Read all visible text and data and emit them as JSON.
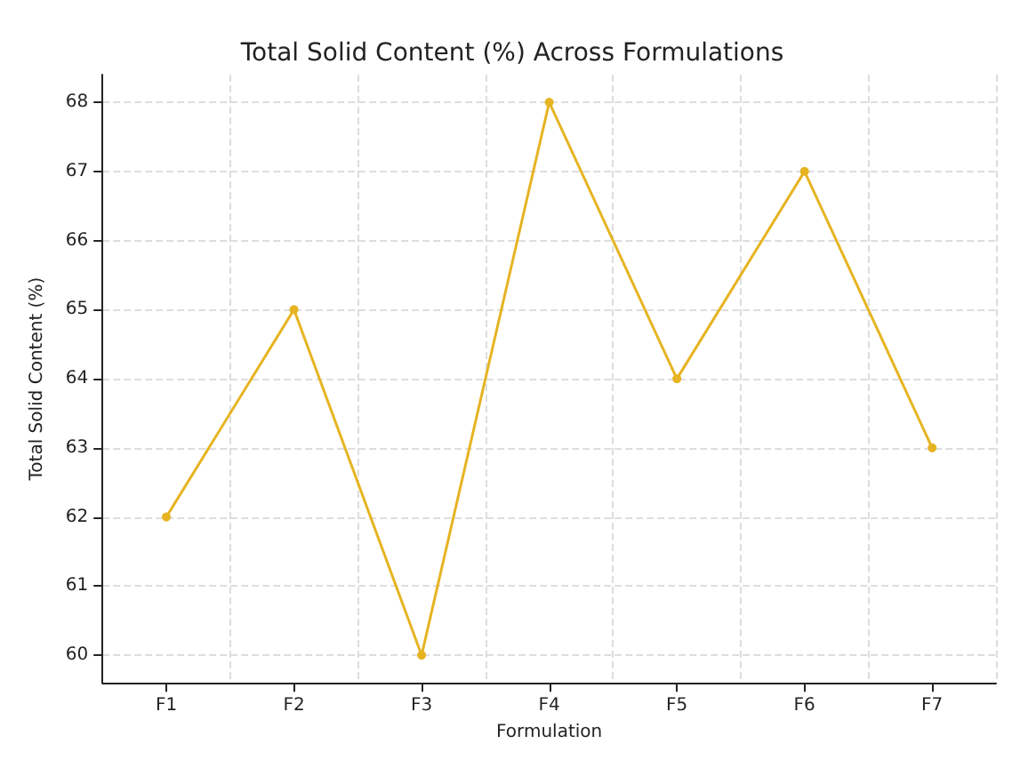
{
  "chart_data": {
    "type": "line",
    "title": "Total Solid Content (%) Across Formulations",
    "xlabel": "Formulation",
    "ylabel": "Total Solid Content (%)",
    "categories": [
      "F1",
      "F2",
      "F3",
      "F4",
      "F5",
      "F6",
      "F7"
    ],
    "series": [
      {
        "color": "#e6b422",
        "values": [
          62,
          65,
          60,
          68,
          64,
          67,
          63
        ]
      }
    ],
    "ylim": [
      59.6,
      68.4
    ],
    "yticks": [
      60,
      61,
      62,
      63,
      64,
      65,
      66,
      67,
      68
    ],
    "grid": true,
    "marker": "circle",
    "line_style": "solid"
  }
}
